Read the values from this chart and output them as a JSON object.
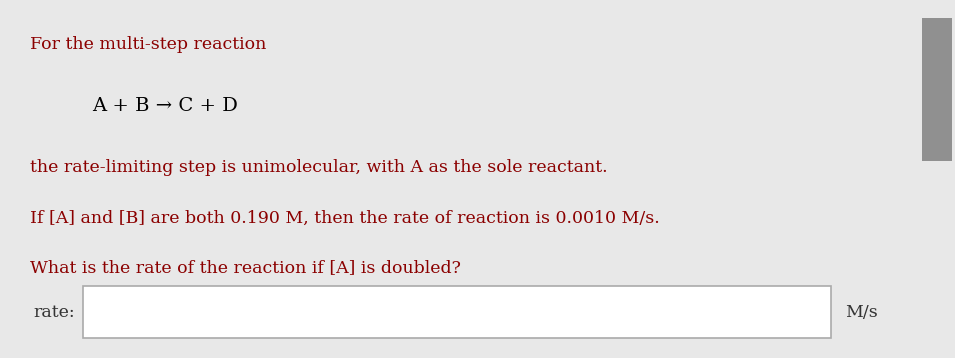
{
  "bg_color": "#e8e8e8",
  "panel_color": "#ffffff",
  "line1_text": "For the multi-step reaction",
  "line1_color": "#8B0000",
  "equation_text": "A + B → C + D",
  "equation_color": "#000000",
  "line2_text": "the rate-limiting step is unimolecular, with A as the sole reactant.",
  "line2_color": "#8B0000",
  "line3_text": "If [A] and [B] are both 0.190 M, then the rate of reaction is 0.0010 M/s.",
  "line3_color": "#8B0000",
  "line4_text": "What is the rate of the reaction if [A] is doubled?",
  "line4_color": "#8B0000",
  "rate_label": "rate:",
  "rate_label_color": "#333333",
  "unit_label": "M/s",
  "unit_label_color": "#333333",
  "input_box_edgecolor": "#aaaaaa",
  "scrollbar_bg": "#c0c0c0",
  "scrollbar_thumb": "#909090",
  "font_size_main": 12.5,
  "font_size_equation": 14
}
